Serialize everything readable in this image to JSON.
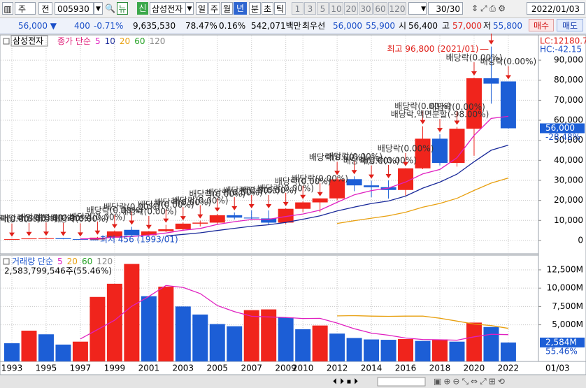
{
  "toolbar": {
    "market": "주",
    "kind": "전",
    "code": "005930",
    "news": "뉴",
    "credit": "신",
    "name": "삼성전자",
    "periods": [
      "일",
      "주",
      "월",
      "년",
      "분",
      "초",
      "틱"
    ],
    "intervals": [
      "1",
      "3",
      "5",
      "10",
      "20",
      "30",
      "60",
      "120"
    ],
    "count": "30/30",
    "date": "2022/01/03"
  },
  "quote": {
    "price": "56,000 ▼",
    "change": "400",
    "change_rate": "-0.71%",
    "volume": "9,635,530",
    "volume_rate": "78.47%",
    "turnover": "0.16%",
    "amount": "542,071백만",
    "best_label": "최우선",
    "ask": "56,000",
    "bid": "55,900",
    "open_label": "시",
    "open": "56,400",
    "high_label": "고",
    "high": "57,000",
    "low_label": "저",
    "low": "55,800",
    "buy": "매수",
    "sell": "매도"
  },
  "chart_data": [
    {
      "type": "candlestick",
      "name": "삼성전자",
      "legend_label": "종가 단순",
      "lc": "LC:12180.70",
      "hc": "HC:-42.15",
      "up_color": "#f0241c",
      "down_color": "#1c5ed6",
      "open": [
        500,
        700,
        1000,
        1100,
        700,
        500,
        1400,
        5300,
        2600,
        4600,
        5600,
        8400,
        8900,
        12600,
        11400,
        11000,
        8900,
        15800,
        19000,
        21000,
        30600,
        27500,
        26600,
        25200,
        36000,
        50800,
        38700,
        55800,
        81000,
        79400
      ],
      "high": [
        800,
        1100,
        1300,
        1150,
        900,
        1800,
        5000,
        6800,
        4600,
        7800,
        9000,
        9900,
        13300,
        14000,
        15000,
        15000,
        16100,
        19600,
        21000,
        31600,
        32000,
        29800,
        30000,
        36000,
        57000,
        53000,
        56700,
        81300,
        96800,
        79400
      ],
      "low": [
        456,
        650,
        900,
        600,
        300,
        400,
        1300,
        2400,
        2000,
        4200,
        5000,
        7000,
        8000,
        10500,
        10700,
        7800,
        8200,
        14100,
        14100,
        20000,
        24600,
        21600,
        20900,
        22000,
        35600,
        37450,
        36850,
        42300,
        68300,
        55800
      ],
      "close": [
        700,
        1000,
        1100,
        700,
        500,
        1400,
        4500,
        2600,
        4500,
        5600,
        8400,
        8900,
        12600,
        11400,
        11000,
        8900,
        15800,
        19000,
        21000,
        30500,
        27500,
        26600,
        25200,
        36000,
        50800,
        38700,
        55800,
        81000,
        78300,
        56000
      ],
      "series": [
        {
          "name": "5",
          "color": "#e020c0",
          "values": [
            null,
            null,
            null,
            null,
            800,
            940,
            1640,
            1940,
            2700,
            3720,
            5120,
            6000,
            8000,
            9380,
            10460,
            10560,
            11940,
            13220,
            15140,
            19040,
            22760,
            24920,
            26160,
            29160,
            33220,
            35460,
            41300,
            52460,
            60920,
            61960
          ]
        },
        {
          "name": "10",
          "color": "#1a2a9a",
          "values": [
            null,
            null,
            null,
            null,
            null,
            null,
            null,
            null,
            null,
            2260,
            3030,
            3820,
            4970,
            6040,
            7090,
            7840,
            8970,
            10610,
            12260,
            14750,
            16660,
            18430,
            19690,
            22150,
            26130,
            29110,
            33110,
            39310,
            45040,
            47590
          ]
        },
        {
          "name": "20",
          "color": "#e8a010",
          "values": [
            null,
            null,
            null,
            null,
            null,
            null,
            null,
            null,
            null,
            null,
            null,
            null,
            null,
            null,
            null,
            null,
            null,
            null,
            null,
            8505,
            9845,
            11125,
            12330,
            14095,
            16610,
            18475,
            21040,
            24960,
            28650,
            31170
          ]
        },
        {
          "name": "60",
          "color": "#22a022",
          "values": [
            null,
            null,
            null,
            null,
            null,
            null,
            null,
            null,
            null,
            null,
            null,
            null,
            null,
            null,
            null,
            null,
            null,
            null,
            null,
            null,
            null,
            null,
            null,
            null,
            null,
            null,
            null,
            null,
            null,
            null
          ]
        },
        {
          "name": "120",
          "color": "#888888",
          "values": [
            null,
            null,
            null,
            null,
            null,
            null,
            null,
            null,
            null,
            null,
            null,
            null,
            null,
            null,
            null,
            null,
            null,
            null,
            null,
            null,
            null,
            null,
            null,
            null,
            null,
            null,
            null,
            null,
            null,
            null
          ]
        }
      ],
      "dividend_labels": [
        "배당락(0.00%)",
        "배당락(0.00%)",
        "배당락(0.00%)",
        "배당락(0.00%)",
        "배당락(0.00%)",
        "배당락(0.00%)",
        "배당락(0.00%)",
        "배당락(0.00%)",
        "배당락(0.00%)",
        "배당락(0.00%)",
        "배당락(0.00%)",
        "배당락(0.00%)",
        "배당락(0.00%)",
        "배당락(0.00%)",
        "배당락(0.00%)",
        "배당락(0.00%)",
        "배당락(0.00%)",
        "배당락(0.00%)",
        "배당락(0.00%)",
        "배당락(0.00%)",
        "배당락(0.00%)",
        "배당락(0.00%)",
        "배당락(0.00%)",
        "배당락(0.00%)",
        "배당락(0.00%)",
        "배당락,액면분할(-98.00%)",
        "배당락(0.00%)",
        "배당락(0.00%)",
        "배당락(0.00%)",
        "배당락(0.00%)"
      ],
      "high_label": "최고 96,800 (2021/01)",
      "low_label": "최저 456 (1993/01)",
      "current": {
        "value": 56000,
        "label": "56,000",
        "change": "-28.48%"
      },
      "ylim": [
        -6650,
        102600
      ],
      "yticks": [
        {
          "value": 0,
          "label": "0"
        },
        {
          "value": 10000,
          "label": "10,000"
        },
        {
          "value": 20000,
          "label": "20,000"
        },
        {
          "value": 30000,
          "label": "30,000"
        },
        {
          "value": 40000,
          "label": "40,000"
        },
        {
          "value": 50000,
          "label": "50,000"
        },
        {
          "value": 60000,
          "label": "60,000"
        },
        {
          "value": 70000,
          "label": "70,000"
        },
        {
          "value": 80000,
          "label": "80,000"
        },
        {
          "value": 90000,
          "label": "90,000"
        }
      ],
      "grid": true
    },
    {
      "type": "volume",
      "legend_label": "거래량 단순",
      "total": "2,583,799,546주(55.46%)",
      "up_color": "#f0241c",
      "down_color": "#1c5ed6",
      "categories": [
        "1993",
        null,
        "1995",
        null,
        "1997",
        null,
        "1999",
        null,
        "2001",
        null,
        "2003",
        null,
        "2005",
        null,
        "2007",
        null,
        "2009",
        "2010",
        null,
        "2012",
        null,
        "2014",
        null,
        "2016",
        null,
        "2018",
        null,
        "2020",
        null,
        "2022"
      ],
      "values": [
        2480,
        4200,
        3700,
        2300,
        2700,
        8800,
        10600,
        13300,
        8900,
        10200,
        7500,
        6400,
        5100,
        4800,
        7000,
        7100,
        6000,
        4400,
        4900,
        3800,
        3200,
        3000,
        2950,
        3050,
        2800,
        3000,
        2700,
        5300,
        4700,
        2584
      ],
      "series": [
        {
          "name": "5",
          "color": "#e020c0",
          "values": [
            null,
            null,
            null,
            null,
            3076,
            4340,
            5620,
            7540,
            8860,
            10360,
            10100,
            9260,
            7620,
            6800,
            6160,
            6080,
            6000,
            5860,
            5880,
            5240,
            4460,
            3860,
            3580,
            3200,
            3000,
            2960,
            2900,
            3360,
            3700,
            3657
          ]
        },
        {
          "name": "20",
          "color": "#e8a010",
          "values": [
            null,
            null,
            null,
            null,
            null,
            null,
            null,
            null,
            null,
            null,
            null,
            null,
            null,
            null,
            null,
            null,
            null,
            null,
            null,
            6209,
            6245,
            6185,
            6150,
            6185,
            6190,
            5900,
            5505,
            5105,
            4895,
            4514
          ]
        },
        {
          "name": "60",
          "color": "#22a022",
          "values": [
            null,
            null,
            null,
            null,
            null,
            null,
            null,
            null,
            null,
            null,
            null,
            null,
            null,
            null,
            null,
            null,
            null,
            null,
            null,
            null,
            null,
            null,
            null,
            null,
            null,
            null,
            null,
            null,
            null,
            null
          ]
        },
        {
          "name": "120",
          "color": "#888888",
          "values": [
            null,
            null,
            null,
            null,
            null,
            null,
            null,
            null,
            null,
            null,
            null,
            null,
            null,
            null,
            null,
            null,
            null,
            null,
            null,
            null,
            null,
            null,
            null,
            null,
            null,
            null,
            null,
            null,
            null,
            null
          ]
        }
      ],
      "current": {
        "value": 2584,
        "label": "2,584M",
        "change": "55.46%"
      },
      "x_end_label": "01/03",
      "ylim": [
        0,
        14500
      ],
      "yticks": [
        {
          "value": 5000,
          "label": "5,000M"
        },
        {
          "value": 7500,
          "label": "7,500M"
        },
        {
          "value": 10000,
          "label": "10,000M"
        },
        {
          "value": 12500,
          "label": "12,500M"
        }
      ],
      "grid": true
    }
  ]
}
